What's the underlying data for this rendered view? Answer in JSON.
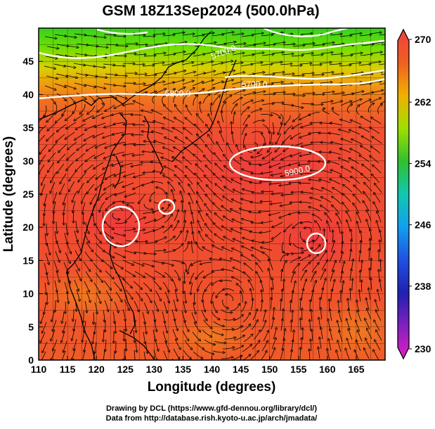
{
  "title": "GSM 18Z13Sep2024 (500.0hPa)",
  "xlabel": "Longitude (degrees)",
  "ylabel": "Latitude  (degrees)",
  "x_ticks": [
    "110",
    "115",
    "120",
    "125",
    "130",
    "135",
    "140",
    "145",
    "150",
    "155",
    "160",
    "165"
  ],
  "y_ticks": [
    "0",
    "5",
    "10",
    "15",
    "20",
    "25",
    "30",
    "35",
    "40",
    "45"
  ],
  "colorbar_ticks": [
    "270",
    "262",
    "254",
    "246",
    "238",
    "230"
  ],
  "contour_labels": [
    "5700.0",
    "5700.0",
    "5800.0",
    "5900.0"
  ],
  "credit_line1": "Drawing by DCL (https://www.gfd-dennou.org/library/dcl/)",
  "credit_line2": "Data from http://database.rish.kyoto-u.ac.jp/arch/jmadata/",
  "map_data": {
    "lon_range": [
      110,
      170
    ],
    "lat_range": [
      0,
      50
    ],
    "temperature_range_K": [
      230,
      270
    ],
    "colormap_stops": [
      {
        "value": 230,
        "color": "#e020c0"
      },
      {
        "value": 234,
        "color": "#8020c0"
      },
      {
        "value": 238,
        "color": "#2020b0"
      },
      {
        "value": 242,
        "color": "#2050e0"
      },
      {
        "value": 246,
        "color": "#10a0f0"
      },
      {
        "value": 250,
        "color": "#10c8b0"
      },
      {
        "value": 254,
        "color": "#30c030"
      },
      {
        "value": 258,
        "color": "#a0e000"
      },
      {
        "value": 262,
        "color": "#f0b000"
      },
      {
        "value": 266,
        "color": "#f06020"
      },
      {
        "value": 270,
        "color": "#f04040"
      }
    ],
    "height_contours_m": [
      5700,
      5800,
      5900
    ],
    "circulation_centers": [
      {
        "kind": "anticyclone",
        "lon": 147,
        "lat": 32
      },
      {
        "kind": "cyclone",
        "lon": 123,
        "lat": 22
      },
      {
        "kind": "cyclone",
        "lon": 131,
        "lat": 25
      },
      {
        "kind": "cyclone",
        "lon": 157,
        "lat": 19.5
      },
      {
        "kind": "cyclone",
        "lon": 143,
        "lat": 9
      }
    ]
  }
}
